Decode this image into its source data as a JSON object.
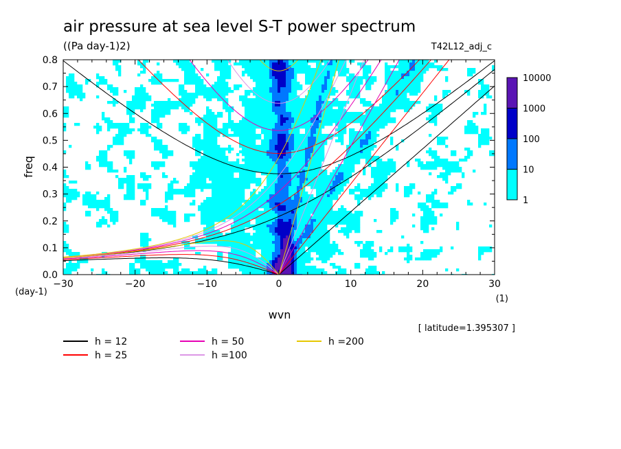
{
  "chart_data": {
    "type": "heatmap",
    "title": "air pressure at sea level S-T power spectrum",
    "subtitle": "((Pa day-1)2)",
    "run_label": "T42L12_adj_c",
    "xlabel": "wvn",
    "ylabel": "freq",
    "x_unit_label": "(1)",
    "y_unit_label": "(day-1)",
    "xlim": [
      -30,
      30
    ],
    "ylim": [
      0,
      0.8
    ],
    "x_ticks": [
      -30,
      -20,
      -10,
      0,
      10,
      20,
      30
    ],
    "y_ticks": [
      0.0,
      0.1,
      0.2,
      0.3,
      0.4,
      0.5,
      0.6,
      0.7,
      0.8
    ],
    "annotation": "[ latitude=1.395307 ]",
    "colorbar": {
      "levels": [
        "1",
        "10",
        "100",
        "1000",
        "10000"
      ],
      "colors": [
        "#00ffff",
        "#0078ff",
        "#0000c8",
        "#5a14b4"
      ]
    },
    "contour_fill_summary": "Spectral power is concentrated near wvn 0 at low frequency (up to 1000), with a V-shaped band of values 10-100 spreading toward positive wavenumbers and a broad field of values 1-10 over the whole domain.",
    "dispersion_curves": [
      {
        "name": "h = 12",
        "color": "#000000"
      },
      {
        "name": "h = 25",
        "color": "#ff0000"
      },
      {
        "name": "h = 50",
        "color": "#e600b4"
      },
      {
        "name": "h =100",
        "color": "#dc96e6"
      },
      {
        "name": "h =200",
        "color": "#e6c800"
      }
    ]
  }
}
